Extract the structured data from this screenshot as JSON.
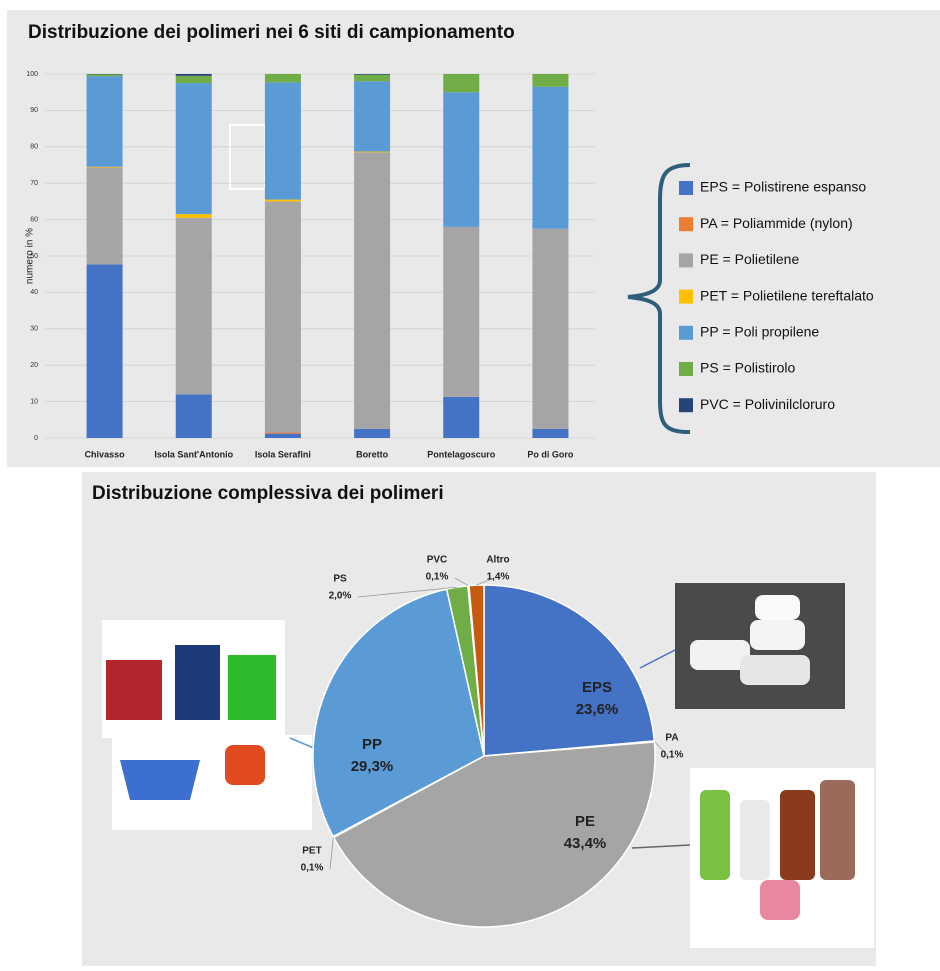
{
  "chart_data": [
    {
      "type": "stacked-bar",
      "title": "Distribuzione dei polimeri nei 6 siti di campionamento",
      "y_label": "numero in %",
      "categories": [
        "Chivasso",
        "Isola Sant'Antonio",
        "Isola Serafini",
        "Boretto",
        "Pontelagoscuro",
        "Po di Goro"
      ],
      "series": [
        {
          "name": "EPS = Polistirene espanso",
          "color": "#4472c4",
          "values": [
            47.7,
            12,
            1.2,
            2.5,
            11.3,
            2.5
          ]
        },
        {
          "name": "PA = Poliammide (nylon)",
          "color": "#ed7d31",
          "values": [
            0,
            0,
            0.3,
            0,
            0,
            0
          ]
        },
        {
          "name": "PE = Polietilene",
          "color": "#a5a5a5",
          "values": [
            26.6,
            48.5,
            63.5,
            76,
            46.7,
            55
          ]
        },
        {
          "name": "PET = Polietilene tereftalato",
          "color": "#ffc000",
          "values": [
            0.2,
            1,
            0.5,
            0.2,
            0,
            0
          ]
        },
        {
          "name": "PP = Poli propilene",
          "color": "#5b9bd5",
          "values": [
            24.9,
            36,
            32.2,
            19.3,
            37,
            39
          ]
        },
        {
          "name": "PS = Polistirolo",
          "color": "#70ad47",
          "values": [
            0.5,
            2,
            2.3,
            1.8,
            5,
            3.5
          ]
        },
        {
          "name": "PVC = Polivinilcloruro",
          "color": "#264478",
          "values": [
            0.1,
            0.5,
            0,
            0.2,
            0,
            0
          ]
        }
      ],
      "ylim": [
        0,
        100
      ],
      "yticks": [
        0,
        10,
        20,
        30,
        40,
        50,
        60,
        70,
        80,
        90,
        100
      ],
      "grid": true,
      "legend": "right"
    },
    {
      "type": "pie",
      "title": "Distribuzione complessiva dei polimeri",
      "categories": [
        "EPS",
        "PA",
        "PE",
        "PET",
        "PP",
        "PS",
        "PVC",
        "Altro"
      ],
      "values": [
        23.6,
        0.1,
        43.4,
        0.1,
        29.3,
        2.0,
        0.1,
        1.4
      ],
      "value_labels": [
        "23,6%",
        "0,1%",
        "43,4%",
        "0,1%",
        "29,3%",
        "2,0%",
        "0,1%",
        "1,4%"
      ],
      "colors": [
        "#4472c4",
        "#ed7d31",
        "#a5a5a5",
        "#ffc000",
        "#5b9bd5",
        "#70ad47",
        "#264478",
        "#c55a11"
      ]
    }
  ]
}
